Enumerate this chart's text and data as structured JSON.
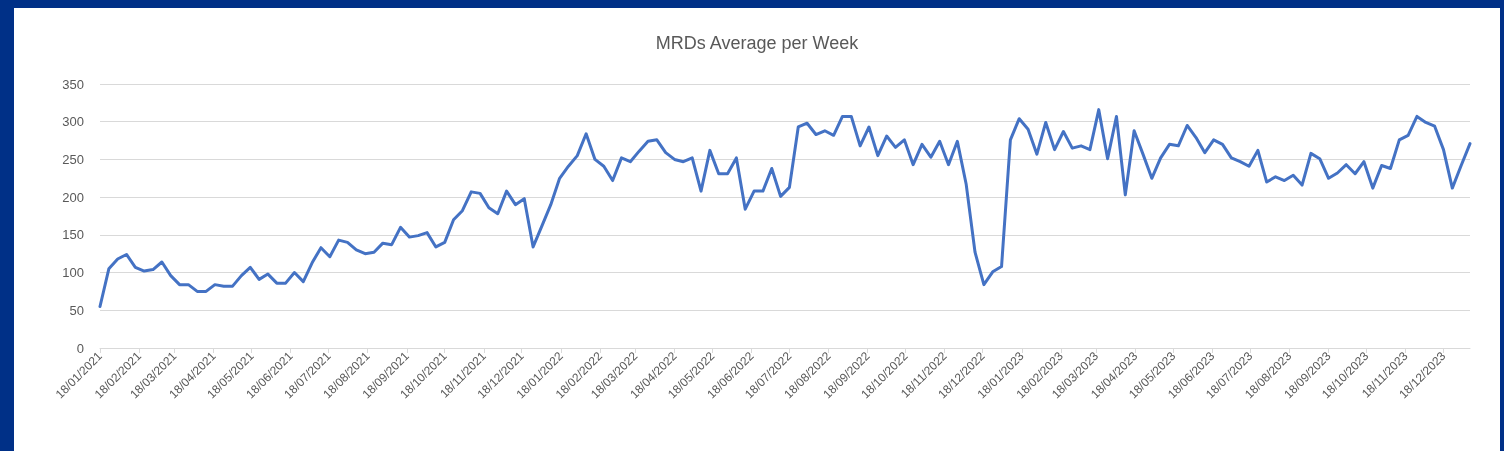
{
  "chart_data": {
    "type": "line",
    "title": "MRDs Average per Week",
    "x": [
      "2021-01-18",
      "2021-01-25",
      "2021-02-01",
      "2021-02-08",
      "2021-02-15",
      "2021-02-22",
      "2021-03-01",
      "2021-03-08",
      "2021-03-15",
      "2021-03-22",
      "2021-03-29",
      "2021-04-05",
      "2021-04-12",
      "2021-04-19",
      "2021-04-26",
      "2021-05-03",
      "2021-05-10",
      "2021-05-17",
      "2021-05-24",
      "2021-05-31",
      "2021-06-07",
      "2021-06-14",
      "2021-06-21",
      "2021-06-28",
      "2021-07-05",
      "2021-07-12",
      "2021-07-19",
      "2021-07-26",
      "2021-08-02",
      "2021-08-09",
      "2021-08-16",
      "2021-08-23",
      "2021-08-30",
      "2021-09-06",
      "2021-09-13",
      "2021-09-20",
      "2021-09-27",
      "2021-10-04",
      "2021-10-11",
      "2021-10-18",
      "2021-10-25",
      "2021-11-01",
      "2021-11-08",
      "2021-11-15",
      "2021-11-22",
      "2021-11-29",
      "2021-12-06",
      "2021-12-13",
      "2021-12-20",
      "2021-12-27",
      "2022-01-03",
      "2022-01-10",
      "2022-01-17",
      "2022-01-24",
      "2022-01-31",
      "2022-02-07",
      "2022-02-14",
      "2022-02-21",
      "2022-02-28",
      "2022-03-07",
      "2022-03-14",
      "2022-03-21",
      "2022-03-28",
      "2022-04-04",
      "2022-04-11",
      "2022-04-18",
      "2022-04-25",
      "2022-05-02",
      "2022-05-09",
      "2022-05-16",
      "2022-05-23",
      "2022-05-30",
      "2022-06-06",
      "2022-06-13",
      "2022-06-20",
      "2022-06-27",
      "2022-07-04",
      "2022-07-11",
      "2022-07-18",
      "2022-07-25",
      "2022-08-01",
      "2022-08-08",
      "2022-08-15",
      "2022-08-22",
      "2022-08-29",
      "2022-09-05",
      "2022-09-12",
      "2022-09-19",
      "2022-09-26",
      "2022-10-03",
      "2022-10-10",
      "2022-10-17",
      "2022-10-24",
      "2022-10-31",
      "2022-11-07",
      "2022-11-14",
      "2022-11-21",
      "2022-11-28",
      "2022-12-05",
      "2022-12-12",
      "2022-12-19",
      "2022-12-26",
      "2023-01-02",
      "2023-01-09",
      "2023-01-16",
      "2023-01-23",
      "2023-01-30",
      "2023-02-06",
      "2023-02-13",
      "2023-02-20",
      "2023-02-27",
      "2023-03-06",
      "2023-03-13",
      "2023-03-20",
      "2023-03-27",
      "2023-04-03",
      "2023-04-10",
      "2023-04-17",
      "2023-04-24",
      "2023-05-01",
      "2023-05-08",
      "2023-05-15",
      "2023-05-22",
      "2023-05-29",
      "2023-06-05",
      "2023-06-12",
      "2023-06-19",
      "2023-06-26",
      "2023-07-03",
      "2023-07-10",
      "2023-07-17",
      "2023-07-24",
      "2023-07-31",
      "2023-08-07",
      "2023-08-14",
      "2023-08-21",
      "2023-08-28",
      "2023-09-04",
      "2023-09-11",
      "2023-09-18",
      "2023-09-25",
      "2023-10-02",
      "2023-10-09",
      "2023-10-16",
      "2023-10-23",
      "2023-10-30",
      "2023-11-06",
      "2023-11-13",
      "2023-11-20",
      "2023-11-27",
      "2023-12-04",
      "2023-12-11",
      "2023-12-18",
      "2023-12-25",
      "2024-01-01",
      "2024-01-08"
    ],
    "series": [
      {
        "color": "#4472c4",
        "values": [
          55,
          105,
          118,
          124,
          107,
          102,
          104,
          114,
          96,
          84,
          84,
          75,
          75,
          84,
          82,
          82,
          96,
          107,
          91,
          98,
          86,
          86,
          100,
          88,
          113,
          133,
          121,
          143,
          140,
          130,
          125,
          127,
          139,
          137,
          160,
          147,
          149,
          153,
          134,
          140,
          170,
          182,
          207,
          205,
          186,
          178,
          208,
          190,
          198,
          134,
          162,
          190,
          225,
          241,
          255,
          284,
          250,
          241,
          222,
          252,
          247,
          261,
          274,
          276,
          259,
          250,
          247,
          252,
          208,
          262,
          231,
          231,
          252,
          184,
          208,
          208,
          238,
          201,
          213,
          293,
          298,
          283,
          288,
          282,
          307,
          307,
          268,
          293,
          255,
          281,
          266,
          276,
          243,
          270,
          253,
          274,
          243,
          274,
          217,
          127,
          84,
          101,
          108,
          276,
          304,
          290,
          257,
          299,
          263,
          287,
          265,
          268,
          263,
          316,
          251,
          307,
          203,
          288,
          257,
          225,
          252,
          270,
          268,
          295,
          279,
          259,
          276,
          270,
          252,
          247,
          241,
          262,
          220,
          227,
          222,
          229,
          216,
          258,
          251,
          225,
          232,
          243,
          231,
          247,
          212,
          242,
          238,
          276,
          282,
          307,
          299,
          294,
          263,
          212,
          242,
          271
        ]
      }
    ],
    "xlim": [
      "2021-01-18",
      "2024-01-08"
    ],
    "xticks": [
      {
        "value": "2021-01-18",
        "label": "18/01/2021"
      },
      {
        "value": "2021-02-18",
        "label": "18/02/2021"
      },
      {
        "value": "2021-03-18",
        "label": "18/03/2021"
      },
      {
        "value": "2021-04-18",
        "label": "18/04/2021"
      },
      {
        "value": "2021-05-18",
        "label": "18/05/2021"
      },
      {
        "value": "2021-06-18",
        "label": "18/06/2021"
      },
      {
        "value": "2021-07-18",
        "label": "18/07/2021"
      },
      {
        "value": "2021-08-18",
        "label": "18/08/2021"
      },
      {
        "value": "2021-09-18",
        "label": "18/09/2021"
      },
      {
        "value": "2021-10-18",
        "label": "18/10/2021"
      },
      {
        "value": "2021-11-18",
        "label": "18/11/2021"
      },
      {
        "value": "2021-12-18",
        "label": "18/12/2021"
      },
      {
        "value": "2022-01-18",
        "label": "18/01/2022"
      },
      {
        "value": "2022-02-18",
        "label": "18/02/2022"
      },
      {
        "value": "2022-03-18",
        "label": "18/03/2022"
      },
      {
        "value": "2022-04-18",
        "label": "18/04/2022"
      },
      {
        "value": "2022-05-18",
        "label": "18/05/2022"
      },
      {
        "value": "2022-06-18",
        "label": "18/06/2022"
      },
      {
        "value": "2022-07-18",
        "label": "18/07/2022"
      },
      {
        "value": "2022-08-18",
        "label": "18/08/2022"
      },
      {
        "value": "2022-09-18",
        "label": "18/09/2022"
      },
      {
        "value": "2022-10-18",
        "label": "18/10/2022"
      },
      {
        "value": "2022-11-18",
        "label": "18/11/2022"
      },
      {
        "value": "2022-12-18",
        "label": "18/12/2022"
      },
      {
        "value": "2023-01-18",
        "label": "18/01/2023"
      },
      {
        "value": "2023-02-18",
        "label": "18/02/2023"
      },
      {
        "value": "2023-03-18",
        "label": "18/03/2023"
      },
      {
        "value": "2023-04-18",
        "label": "18/04/2023"
      },
      {
        "value": "2023-05-18",
        "label": "18/05/2023"
      },
      {
        "value": "2023-06-18",
        "label": "18/06/2023"
      },
      {
        "value": "2023-07-18",
        "label": "18/07/2023"
      },
      {
        "value": "2023-08-18",
        "label": "18/08/2023"
      },
      {
        "value": "2023-09-18",
        "label": "18/09/2023"
      },
      {
        "value": "2023-10-18",
        "label": "18/10/2023"
      },
      {
        "value": "2023-11-18",
        "label": "18/11/2023"
      },
      {
        "value": "2023-12-18",
        "label": "18/12/2023"
      }
    ],
    "ylim": [
      0,
      350
    ],
    "yticks": [
      0,
      50,
      100,
      150,
      200,
      250,
      300,
      350
    ],
    "grid": "y",
    "marker": "none",
    "line_style": "solid"
  }
}
